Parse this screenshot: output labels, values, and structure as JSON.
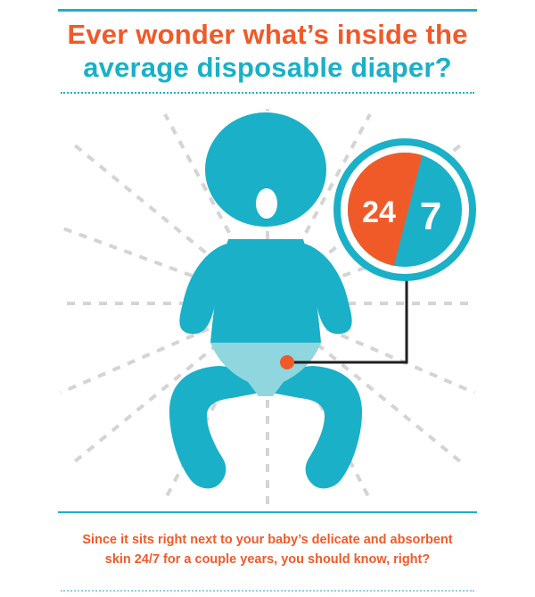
{
  "header": {
    "title_line1": "Ever wonder what’s inside the",
    "title_line2": "average disposable diaper?"
  },
  "badge": {
    "left_text": "24",
    "right_text": "7"
  },
  "caption": {
    "line1": "Since it sits right next to your baby’s delicate and absorbent",
    "line2": "skin 24/7 for a couple years, you should know, right?"
  },
  "colors": {
    "orange": "#f05a28",
    "teal": "#1ab0c8",
    "light_teal": "#8fd6df",
    "ray_gray": "#d4d4d4"
  },
  "icons": {
    "baby": "baby-figure-icon",
    "diaper": "diaper-icon",
    "badge": "24-7-circle-icon"
  }
}
